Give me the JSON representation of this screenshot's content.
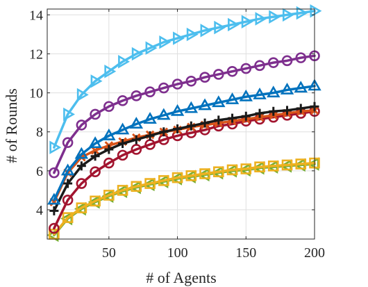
{
  "chart_data": {
    "type": "line",
    "xlabel": "# of Agents",
    "ylabel": "# of Rounds",
    "xlim": [
      5,
      200
    ],
    "ylim": [
      2.5,
      14.3
    ],
    "grid": true,
    "x_ticks": [
      50,
      100,
      150,
      200
    ],
    "y_ticks": [
      4,
      6,
      8,
      10,
      12,
      14
    ],
    "x": [
      10,
      20,
      30,
      40,
      50,
      60,
      70,
      80,
      90,
      100,
      110,
      120,
      130,
      140,
      150,
      160,
      170,
      180,
      190,
      200
    ],
    "series": [
      {
        "marker": "triangle-right",
        "color": "#4DBEEE",
        "values": [
          7.2,
          8.9,
          9.9,
          10.6,
          11.1,
          11.6,
          12.0,
          12.3,
          12.6,
          12.8,
          13.0,
          13.2,
          13.35,
          13.5,
          13.65,
          13.8,
          13.9,
          14.0,
          14.1,
          14.2
        ]
      },
      {
        "marker": "circle",
        "color": "#7E2F8E",
        "values": [
          5.9,
          7.45,
          8.35,
          8.9,
          9.3,
          9.6,
          9.85,
          10.05,
          10.25,
          10.45,
          10.6,
          10.8,
          10.95,
          11.1,
          11.25,
          11.4,
          11.55,
          11.65,
          11.8,
          11.9
        ]
      },
      {
        "marker": "triangle-up",
        "color": "#0072BD",
        "values": [
          4.5,
          6.0,
          6.85,
          7.4,
          7.8,
          8.1,
          8.4,
          8.65,
          8.85,
          9.05,
          9.2,
          9.35,
          9.5,
          9.65,
          9.8,
          9.9,
          10.0,
          10.15,
          10.25,
          10.35
        ]
      },
      {
        "marker": "x",
        "color": "#D95319",
        "values": [
          4.4,
          5.9,
          6.7,
          7.05,
          7.3,
          7.5,
          7.7,
          7.85,
          8.0,
          8.1,
          8.25,
          8.35,
          8.45,
          8.55,
          8.65,
          8.75,
          8.85,
          8.95,
          9.05,
          9.1
        ]
      },
      {
        "marker": "plus",
        "color": "#1a1a1a",
        "values": [
          3.95,
          5.35,
          6.25,
          6.75,
          7.1,
          7.4,
          7.6,
          7.8,
          8.0,
          8.15,
          8.3,
          8.45,
          8.6,
          8.7,
          8.8,
          8.95,
          9.05,
          9.1,
          9.2,
          9.3
        ]
      },
      {
        "marker": "circle",
        "color": "#A2142F",
        "values": [
          3.05,
          4.5,
          5.35,
          5.95,
          6.4,
          6.8,
          7.1,
          7.35,
          7.6,
          7.8,
          7.95,
          8.1,
          8.3,
          8.4,
          8.55,
          8.65,
          8.75,
          8.85,
          8.95,
          9.05
        ]
      },
      {
        "marker": "square",
        "color": "#EDB120",
        "values": [
          2.75,
          3.6,
          4.1,
          4.45,
          4.75,
          5.0,
          5.2,
          5.35,
          5.5,
          5.65,
          5.75,
          5.85,
          5.95,
          6.05,
          6.1,
          6.2,
          6.25,
          6.3,
          6.35,
          6.4
        ]
      },
      {
        "marker": "triangle-left",
        "color": "#77AC30",
        "values": [
          2.7,
          3.55,
          4.05,
          4.4,
          4.7,
          4.95,
          5.15,
          5.3,
          5.45,
          5.6,
          5.7,
          5.8,
          5.9,
          6.0,
          6.05,
          6.15,
          6.2,
          6.25,
          6.3,
          6.35
        ]
      }
    ]
  }
}
